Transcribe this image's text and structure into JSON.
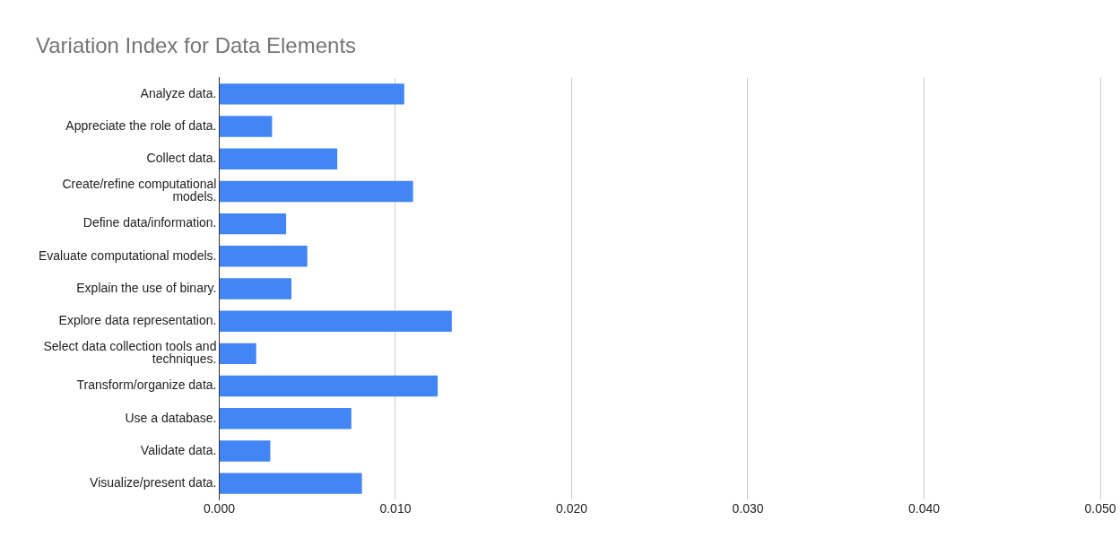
{
  "chart_data": {
    "type": "bar",
    "orientation": "horizontal",
    "title": "Variation Index for Data Elements",
    "categories": [
      "Analyze data.",
      "Appreciate the role of data.",
      "Collect data.",
      "Create/refine computational models.",
      "Define data/information.",
      "Evaluate computational models.",
      "Explain the use of binary.",
      "Explore data representation.",
      "Select data collection tools and techniques.",
      "Transform/organize data.",
      "Use a database.",
      "Validate data.",
      "Visualize/present data."
    ],
    "values": [
      0.0105,
      0.003,
      0.0067,
      0.011,
      0.0038,
      0.005,
      0.0041,
      0.0132,
      0.0021,
      0.0124,
      0.0075,
      0.0029,
      0.0081
    ],
    "color": "#4285f4",
    "xlim": [
      0,
      0.05
    ],
    "xticks": [
      {
        "value": 0,
        "label": "0.000"
      },
      {
        "value": 0.01,
        "label": "0.010"
      },
      {
        "value": 0.02,
        "label": "0.020"
      },
      {
        "value": 0.03,
        "label": "0.030"
      },
      {
        "value": 0.04,
        "label": "0.040"
      },
      {
        "value": 0.05,
        "label": "0.050"
      }
    ],
    "grid": "x",
    "legend": false
  }
}
